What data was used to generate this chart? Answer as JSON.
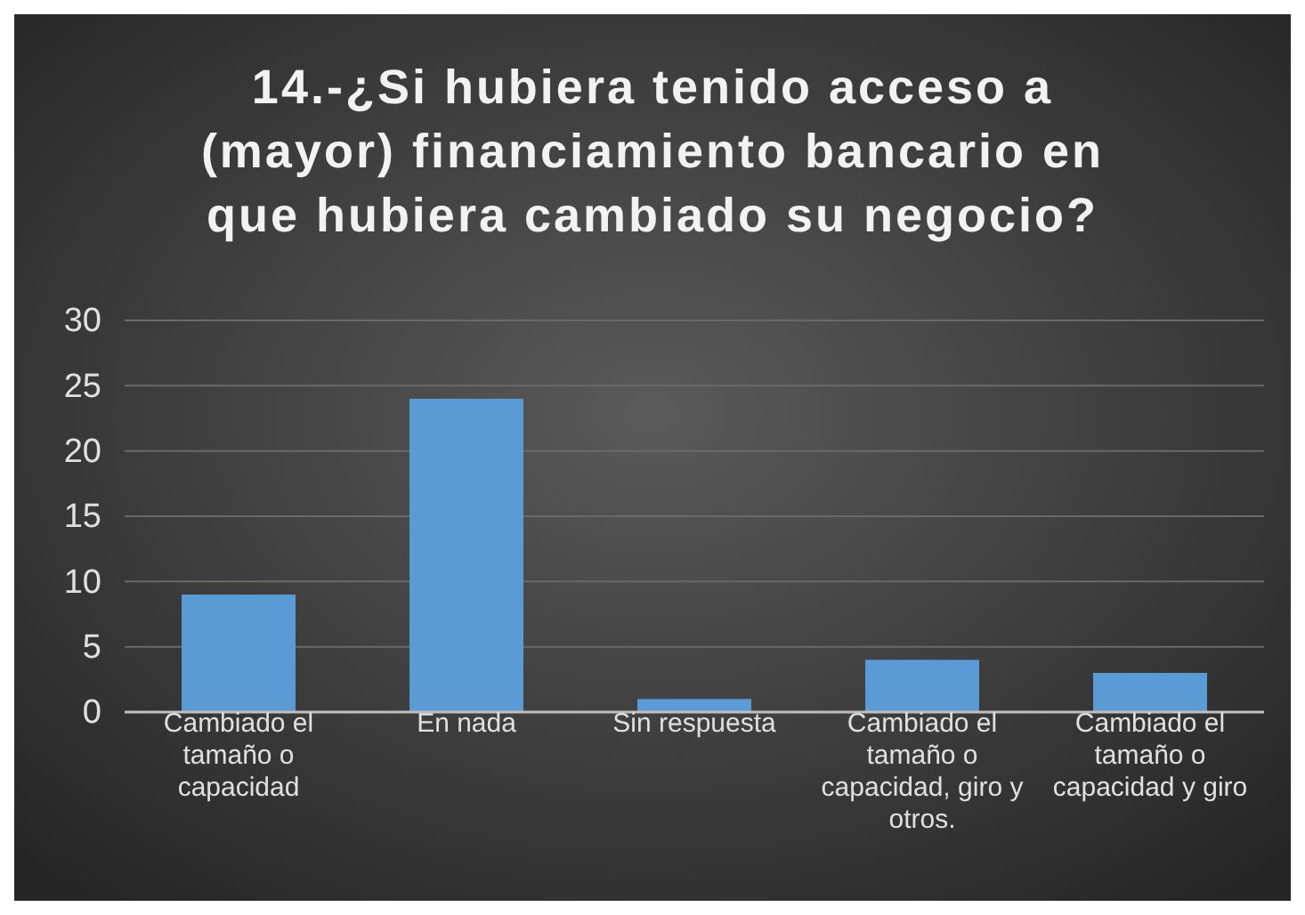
{
  "chart_data": {
    "type": "bar",
    "title": "14.-¿Si hubiera tenido acceso a (mayor) financiamiento bancario en que hubiera cambiado su negocio?",
    "categories": [
      "Cambiado el tamaño o capacidad",
      "En nada",
      "Sin respuesta",
      "Cambiado el tamaño o capacidad, giro y otros.",
      "Cambiado el tamaño o capacidad y giro"
    ],
    "values": [
      9,
      24,
      1,
      4,
      3
    ],
    "color": "#5b9bd5",
    "ylim": [
      0,
      30
    ],
    "yticks": [
      0,
      5,
      10,
      15,
      20,
      25,
      30
    ],
    "grid": "y"
  }
}
